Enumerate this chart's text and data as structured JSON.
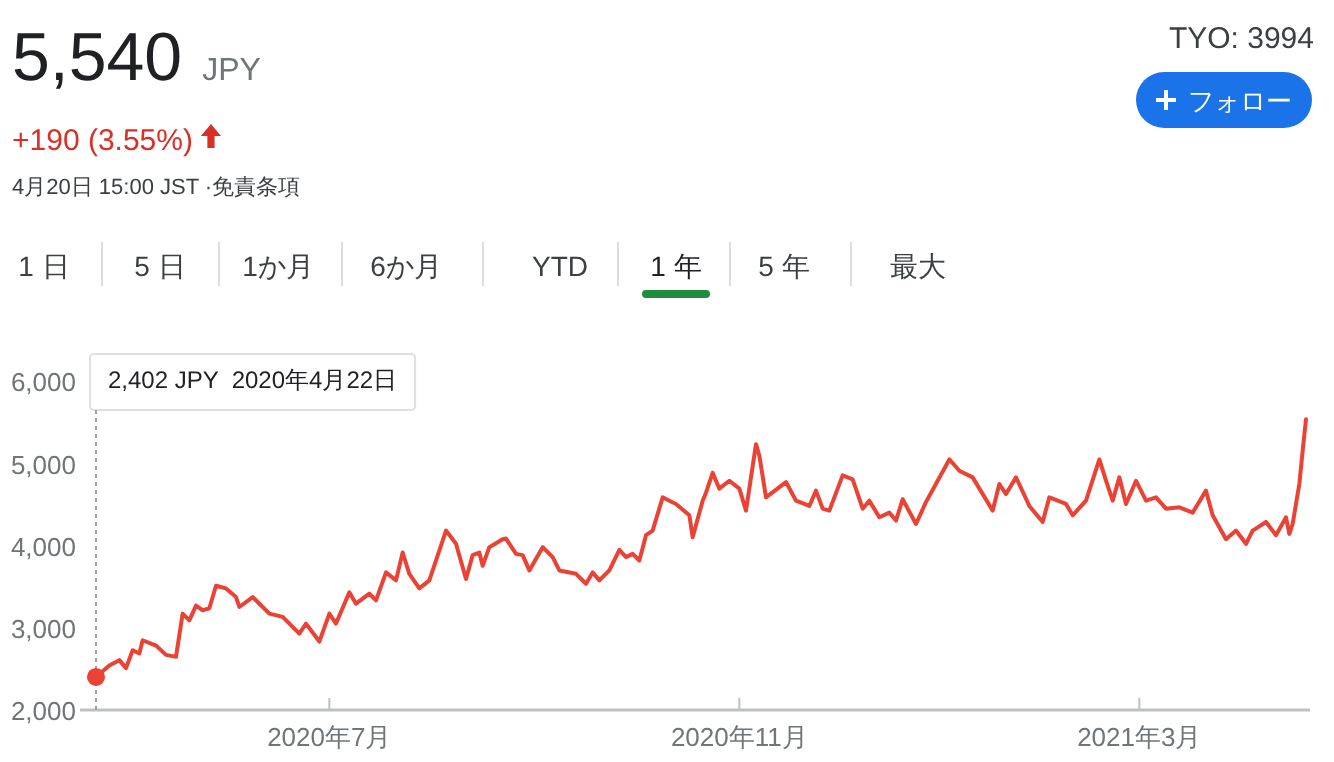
{
  "chart_data": {
    "type": "line",
    "title": "5,540",
    "subtitle": "JPY",
    "annotations": [
      "+190 (3.55%)",
      "4月20日 15:00 JST ·免責条項",
      "TYO: 3994",
      "フォロー",
      "1 日",
      "5 日",
      "1か月",
      "6か月",
      "YTD",
      "1 年",
      "5 年",
      "最大",
      "2,402 JPY  2020年4月22日"
    ],
    "x": [
      "2020-04-22",
      "2020-04-26",
      "2020-04-29",
      "2020-05-01",
      "2020-05-03",
      "2020-05-05",
      "2020-05-06",
      "2020-05-10",
      "2020-05-13",
      "2020-05-16",
      "2020-05-18",
      "2020-05-20",
      "2020-05-22",
      "2020-05-24",
      "2020-05-26",
      "2020-05-28",
      "2020-05-31",
      "2020-06-03",
      "2020-06-04",
      "2020-06-08",
      "2020-06-13",
      "2020-06-17",
      "2020-06-22",
      "2020-06-24",
      "2020-06-28",
      "2020-07-01",
      "2020-07-03",
      "2020-07-07",
      "2020-07-09",
      "2020-07-13",
      "2020-07-15",
      "2020-07-18",
      "2020-07-21",
      "2020-07-23",
      "2020-07-25",
      "2020-07-28",
      "2020-07-31",
      "2020-08-05",
      "2020-08-08",
      "2020-08-11",
      "2020-08-13",
      "2020-08-15",
      "2020-08-16",
      "2020-08-18",
      "2020-08-22",
      "2020-08-23",
      "2020-08-26",
      "2020-08-28",
      "2020-08-30",
      "2020-09-03",
      "2020-09-06",
      "2020-09-08",
      "2020-09-13",
      "2020-09-16",
      "2020-09-18",
      "2020-09-20",
      "2020-09-23",
      "2020-09-26",
      "2020-09-28",
      "2020-09-30",
      "2020-10-02",
      "2020-10-04",
      "2020-10-06",
      "2020-10-09",
      "2020-10-11",
      "2020-10-13",
      "2020-10-17",
      "2020-10-18",
      "2020-10-21",
      "2020-10-22",
      "2020-10-24",
      "2020-10-26",
      "2020-10-29",
      "2020-11-01",
      "2020-11-03",
      "2020-11-06",
      "2020-11-07",
      "2020-11-09",
      "2020-11-15",
      "2020-11-18",
      "2020-11-22",
      "2020-11-24",
      "2020-11-26",
      "2020-11-28",
      "2020-12-02",
      "2020-12-05",
      "2020-12-08",
      "2020-12-10",
      "2020-12-13",
      "2020-12-16",
      "2020-12-18",
      "2020-12-20",
      "2020-12-24",
      "2020-12-27",
      "2021-01-03",
      "2021-01-06",
      "2021-01-10",
      "2021-01-16",
      "2021-01-18",
      "2021-01-20",
      "2021-01-23",
      "2021-01-27",
      "2021-01-31",
      "2021-02-02",
      "2021-02-07",
      "2021-02-09",
      "2021-02-13",
      "2021-02-17",
      "2021-02-19",
      "2021-02-21",
      "2021-02-23",
      "2021-02-25",
      "2021-02-28",
      "2021-03-03",
      "2021-03-06",
      "2021-03-09",
      "2021-03-13",
      "2021-03-17",
      "2021-03-21",
      "2021-03-23",
      "2021-03-27",
      "2021-03-30",
      "2021-04-02",
      "2021-04-04",
      "2021-04-08",
      "2021-04-11",
      "2021-04-14",
      "2021-04-15",
      "2021-04-16",
      "2021-04-18",
      "2021-04-19",
      "2021-04-20"
    ],
    "series": [
      {
        "color": "#ea4335",
        "values": [
          2402,
          2542,
          2607,
          2510,
          2728,
          2688,
          2849,
          2785,
          2671,
          2647,
          3173,
          3092,
          3270,
          3214,
          3238,
          3513,
          3480,
          3375,
          3254,
          3375,
          3173,
          3133,
          2930,
          3052,
          2833,
          3173,
          3052,
          3432,
          3294,
          3416,
          3335,
          3675,
          3578,
          3917,
          3658,
          3480,
          3578,
          4184,
          4023,
          3594,
          3885,
          3917,
          3756,
          3982,
          4079,
          4087,
          3901,
          3885,
          3699,
          3982,
          3861,
          3699,
          3658,
          3537,
          3675,
          3578,
          3699,
          3950,
          3861,
          3901,
          3820,
          4128,
          4184,
          4589,
          4548,
          4508,
          4370,
          4103,
          4548,
          4645,
          4888,
          4694,
          4791,
          4694,
          4427,
          5236,
          5098,
          4589,
          4775,
          4548,
          4484,
          4670,
          4451,
          4427,
          4856,
          4807,
          4451,
          4548,
          4346,
          4403,
          4306,
          4565,
          4265,
          4532,
          5050,
          4912,
          4832,
          4427,
          4751,
          4629,
          4832,
          4484,
          4289,
          4589,
          4508,
          4370,
          4548,
          5050,
          4791,
          4548,
          4832,
          4508,
          4791,
          4548,
          4589,
          4451,
          4467,
          4403,
          4670,
          4370,
          4079,
          4184,
          4023,
          4184,
          4289,
          4128,
          4346,
          4144,
          4265,
          4751,
          5155,
          5540
        ]
      }
    ],
    "xlim": [
      "2020-04-22",
      "2021-04-20"
    ],
    "xticks": [
      {
        "value": "2020-07-01",
        "label": "2020年7月"
      },
      {
        "value": "2020-11-01",
        "label": "2020年11月"
      },
      {
        "value": "2021-03-01",
        "label": "2021年3月"
      }
    ],
    "ylim": [
      2000,
      6000
    ],
    "yticks": [
      {
        "value": 2000,
        "label": "2,000"
      },
      {
        "value": 3000,
        "label": "3,000"
      },
      {
        "value": 4000,
        "label": "4,000"
      },
      {
        "value": 5000,
        "label": "5,000"
      },
      {
        "value": 6000,
        "label": "6,000"
      }
    ],
    "grid": false,
    "marker": "none",
    "line_style": "solid"
  }
}
